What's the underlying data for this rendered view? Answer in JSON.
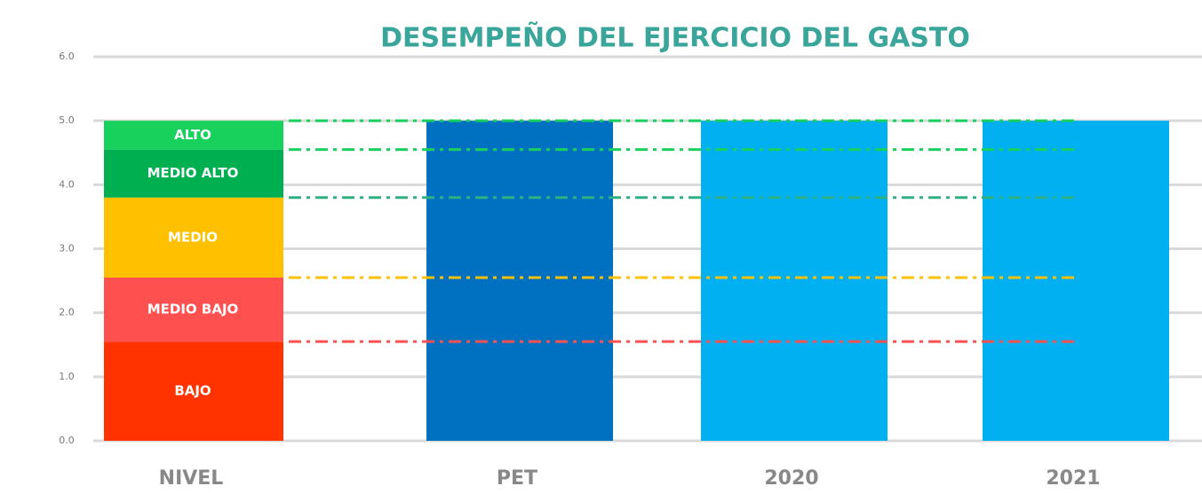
{
  "chart_data": {
    "type": "bar",
    "title": "DESEMPEÑO DEL EJERCICIO DEL GASTO",
    "categories": [
      "NIVEL",
      "PET",
      "2020",
      "2021"
    ],
    "values": [
      null,
      5.0,
      5.0,
      5.0
    ],
    "colors": [
      null,
      "#0070c0",
      "#00b0f0",
      "#00b0f0"
    ],
    "segments": [
      {
        "name": "BAJO",
        "value": 1.55,
        "color": "#ff3300"
      },
      {
        "name": "MEDIO BAJO",
        "value": 1.0,
        "color": "#ff5050"
      },
      {
        "name": "MEDIO",
        "value": 1.25,
        "color": "#ffc000"
      },
      {
        "name": "MEDIO ALTO",
        "value": 0.75,
        "color": "#00b050"
      },
      {
        "name": "ALTO",
        "value": 0.45,
        "color": "#18d05c"
      }
    ],
    "thresholds": [
      {
        "value": 1.55,
        "color": "#ff5050"
      },
      {
        "value": 2.55,
        "color": "#ffc000"
      },
      {
        "value": 3.8,
        "color": "#2fb080"
      },
      {
        "value": 4.55,
        "color": "#18d05c"
      },
      {
        "value": 5.0,
        "color": "#18d05c"
      }
    ],
    "ylim": [
      0,
      6
    ],
    "yticks": [
      {
        "value": 0,
        "label": "0.0"
      },
      {
        "value": 1,
        "label": "1.0"
      },
      {
        "value": 2,
        "label": "2.0"
      },
      {
        "value": 3,
        "label": "3.0"
      },
      {
        "value": 4,
        "label": "4.0"
      },
      {
        "value": 5,
        "label": "5.0"
      },
      {
        "value": 6,
        "label": "6.0"
      }
    ],
    "grid": true
  }
}
